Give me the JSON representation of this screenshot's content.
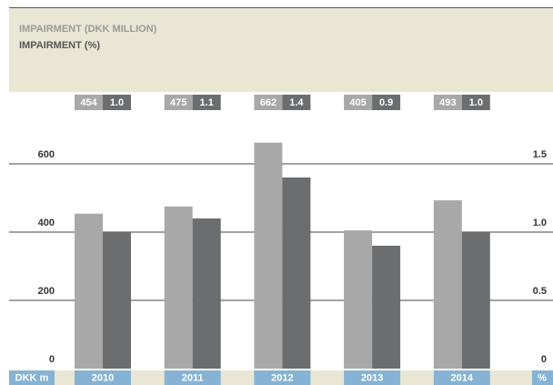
{
  "chart_data": {
    "type": "bar",
    "categories": [
      "2010",
      "2011",
      "2012",
      "2013",
      "2014"
    ],
    "series": [
      {
        "name": "IMPAIRMENT (DKK MILLION)",
        "color": "#a8a8a8",
        "values": [
          454,
          475,
          662,
          405,
          493
        ]
      },
      {
        "name": "IMPAIRMENT (%)",
        "color": "#6c6d6e",
        "axis": "y2",
        "values": [
          1.0,
          1.1,
          1.4,
          0.9,
          1.0
        ],
        "value_labels": [
          "1.0",
          "1.1",
          "1.4",
          "0.9",
          "1.0"
        ]
      }
    ],
    "ylabel": "DKK m",
    "y2label": "%",
    "ylim": [
      0,
      700
    ],
    "yticks": [
      0,
      200,
      400,
      600
    ],
    "y2lim": [
      0,
      1.75
    ],
    "y2ticks": [
      0,
      0.5,
      {
        "value": 1,
        "label": "1.0"
      },
      1.5
    ],
    "grid": true
  }
}
